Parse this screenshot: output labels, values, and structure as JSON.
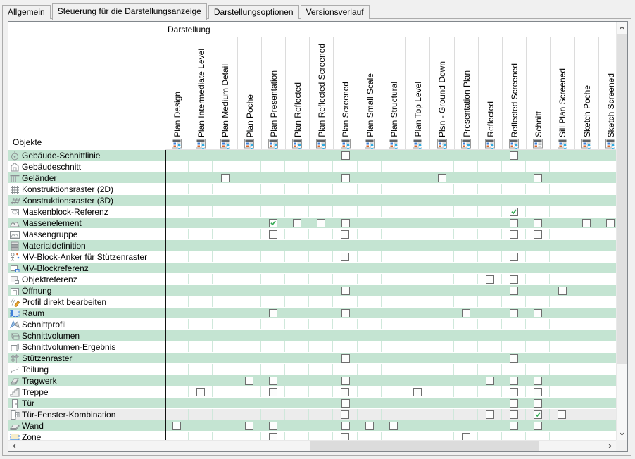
{
  "tabs": [
    {
      "label": "Allgemein",
      "active": false
    },
    {
      "label": "Steuerung für die Darstellungsanzeige",
      "active": true
    },
    {
      "label": "Darstellungsoptionen",
      "active": false
    },
    {
      "label": "Versionsverlauf",
      "active": false
    }
  ],
  "table": {
    "header_group_label": "Darstellung",
    "row_header_label": "Objekte",
    "columns": [
      {
        "label": "Plan Design",
        "icon": "display-representation-person"
      },
      {
        "label": "Plan Intermediate Level",
        "icon": "display-representation-person"
      },
      {
        "label": "Plan Medium Detail",
        "icon": "display-representation-person"
      },
      {
        "label": "Plan Poche",
        "icon": "display-representation-person"
      },
      {
        "label": "Plan Presentation",
        "icon": "display-representation-person"
      },
      {
        "label": "Plan Reflected",
        "icon": "display-representation-person"
      },
      {
        "label": "Plan Reflected Screened",
        "icon": "display-representation-person"
      },
      {
        "label": "Plan Screened",
        "icon": "display-representation-person"
      },
      {
        "label": "Plan Small Scale",
        "icon": "display-representation-person"
      },
      {
        "label": "Plan Structural",
        "icon": "display-representation-person"
      },
      {
        "label": "Plan Top Level",
        "icon": "display-representation-person"
      },
      {
        "label": "Plsn - Ground Down",
        "icon": "display-representation-person"
      },
      {
        "label": "Presentation Plan",
        "icon": "display-representation-person"
      },
      {
        "label": "Reflected",
        "icon": "display-representation-person"
      },
      {
        "label": "Reflected Screened",
        "icon": "display-representation-person"
      },
      {
        "label": "Schnitt",
        "icon": "display-representation"
      },
      {
        "label": "Sill Plan Screened",
        "icon": "display-representation-person"
      },
      {
        "label": "Sketch Poche",
        "icon": "display-representation-person"
      },
      {
        "label": "Sketch Screened",
        "icon": "display-representation-person"
      }
    ],
    "rows": [
      {
        "label": "Gebäude-Schnittlinie",
        "icon": "section-line",
        "tone": "green",
        "cells": [
          {
            "col": 8,
            "checked": false
          },
          {
            "col": 15,
            "checked": false
          }
        ]
      },
      {
        "label": "Gebäudeschnitt",
        "icon": "building-section",
        "tone": "white",
        "cells": []
      },
      {
        "label": "Geländer",
        "icon": "railing",
        "tone": "green",
        "cells": [
          {
            "col": 3,
            "checked": false
          },
          {
            "col": 8,
            "checked": false
          },
          {
            "col": 12,
            "checked": false
          },
          {
            "col": 16,
            "checked": false
          }
        ]
      },
      {
        "label": "Konstruktionsraster (2D)",
        "icon": "grid-2d",
        "tone": "white",
        "cells": []
      },
      {
        "label": "Konstruktionsraster (3D)",
        "icon": "grid-3d",
        "tone": "green",
        "cells": []
      },
      {
        "label": "Maskenblock-Referenz",
        "icon": "mask-block",
        "tone": "white",
        "cells": [
          {
            "col": 15,
            "checked": true
          }
        ]
      },
      {
        "label": "Massenelement",
        "icon": "mass-element",
        "tone": "green",
        "cells": [
          {
            "col": 5,
            "checked": true
          },
          {
            "col": 6,
            "checked": false
          },
          {
            "col": 7,
            "checked": false
          },
          {
            "col": 8,
            "checked": false
          },
          {
            "col": 15,
            "checked": false
          },
          {
            "col": 16,
            "checked": false
          },
          {
            "col": 18,
            "checked": false
          },
          {
            "col": 19,
            "checked": false
          }
        ]
      },
      {
        "label": "Massengruppe",
        "icon": "mass-group",
        "tone": "white",
        "cells": [
          {
            "col": 5,
            "checked": false
          },
          {
            "col": 8,
            "checked": false
          },
          {
            "col": 15,
            "checked": false
          },
          {
            "col": 16,
            "checked": false
          }
        ]
      },
      {
        "label": "Materialdefinition",
        "icon": "material-definition",
        "tone": "green",
        "cells": []
      },
      {
        "label": "MV-Block-Anker für Stützenraster",
        "icon": "mv-block-anchor",
        "tone": "white",
        "cells": [
          {
            "col": 8,
            "checked": false
          },
          {
            "col": 15,
            "checked": false
          }
        ]
      },
      {
        "label": "MV-Blockreferenz",
        "icon": "mv-block-reference",
        "tone": "green",
        "cells": []
      },
      {
        "label": "Objektreferenz",
        "icon": "object-reference",
        "tone": "white",
        "cells": [
          {
            "col": 14,
            "checked": false
          },
          {
            "col": 15,
            "checked": false
          }
        ]
      },
      {
        "label": "Öffnung",
        "icon": "opening",
        "tone": "green",
        "cells": [
          {
            "col": 8,
            "checked": false
          },
          {
            "col": 15,
            "checked": false
          },
          {
            "col": 17,
            "checked": false
          }
        ]
      },
      {
        "label": "Profil direkt bearbeiten",
        "icon": "profile-edit",
        "tone": "white",
        "cells": []
      },
      {
        "label": "Raum",
        "icon": "room",
        "tone": "green",
        "cells": [
          {
            "col": 5,
            "checked": false
          },
          {
            "col": 8,
            "checked": false
          },
          {
            "col": 13,
            "checked": false
          },
          {
            "col": 15,
            "checked": false
          },
          {
            "col": 16,
            "checked": false
          }
        ]
      },
      {
        "label": "Schnittprofil",
        "icon": "section-profile",
        "tone": "white",
        "cells": []
      },
      {
        "label": "Schnittvolumen",
        "icon": "section-volume",
        "tone": "green",
        "cells": []
      },
      {
        "label": "Schnittvolumen-Ergebnis",
        "icon": "section-volume-result",
        "tone": "white",
        "cells": []
      },
      {
        "label": "Stützenraster",
        "icon": "column-grid",
        "tone": "green",
        "cells": [
          {
            "col": 8,
            "checked": false
          },
          {
            "col": 15,
            "checked": false
          }
        ]
      },
      {
        "label": "Teilung",
        "icon": "division",
        "tone": "white",
        "cells": []
      },
      {
        "label": "Tragwerk",
        "icon": "structural-member",
        "tone": "green",
        "cells": [
          {
            "col": 4,
            "checked": false
          },
          {
            "col": 5,
            "checked": false
          },
          {
            "col": 8,
            "checked": false
          },
          {
            "col": 14,
            "checked": false
          },
          {
            "col": 15,
            "checked": false
          },
          {
            "col": 16,
            "checked": false
          }
        ]
      },
      {
        "label": "Treppe",
        "icon": "stair",
        "tone": "white",
        "cells": [
          {
            "col": 2,
            "checked": false
          },
          {
            "col": 5,
            "checked": false
          },
          {
            "col": 8,
            "checked": false
          },
          {
            "col": 11,
            "checked": false
          },
          {
            "col": 15,
            "checked": false
          },
          {
            "col": 16,
            "checked": false
          }
        ]
      },
      {
        "label": "Tür",
        "icon": "door",
        "tone": "green",
        "cells": [
          {
            "col": 8,
            "checked": false
          },
          {
            "col": 15,
            "checked": false
          },
          {
            "col": 16,
            "checked": false
          }
        ]
      },
      {
        "label": "Tür-Fenster-Kombination",
        "icon": "door-window",
        "tone": "selected",
        "cells": [
          {
            "col": 8,
            "checked": false
          },
          {
            "col": 14,
            "checked": false
          },
          {
            "col": 15,
            "checked": false
          },
          {
            "col": 16,
            "checked": true
          },
          {
            "col": 17,
            "checked": false
          }
        ]
      },
      {
        "label": "Wand",
        "icon": "wall",
        "tone": "green",
        "cells": [
          {
            "col": 1,
            "checked": false
          },
          {
            "col": 4,
            "checked": false
          },
          {
            "col": 5,
            "checked": false
          },
          {
            "col": 8,
            "checked": false
          },
          {
            "col": 9,
            "checked": false
          },
          {
            "col": 10,
            "checked": false
          },
          {
            "col": 15,
            "checked": false
          },
          {
            "col": 16,
            "checked": false
          }
        ]
      },
      {
        "label": "Zone",
        "icon": "zone",
        "tone": "white",
        "cells": [
          {
            "col": 5,
            "checked": false
          },
          {
            "col": 8,
            "checked": false
          },
          {
            "col": 13,
            "checked": false
          }
        ]
      }
    ]
  },
  "colors": {
    "row_highlight_green": "#c4e4d2",
    "row_selected_gray": "#ececec",
    "cell_grid_line": "#cfe8db",
    "check_green": "#2fa84f",
    "header_icon_blue": "#3e7fd8",
    "header_icon_orange": "#d9662b",
    "header_icon_person_blue": "#2ea9e0"
  }
}
